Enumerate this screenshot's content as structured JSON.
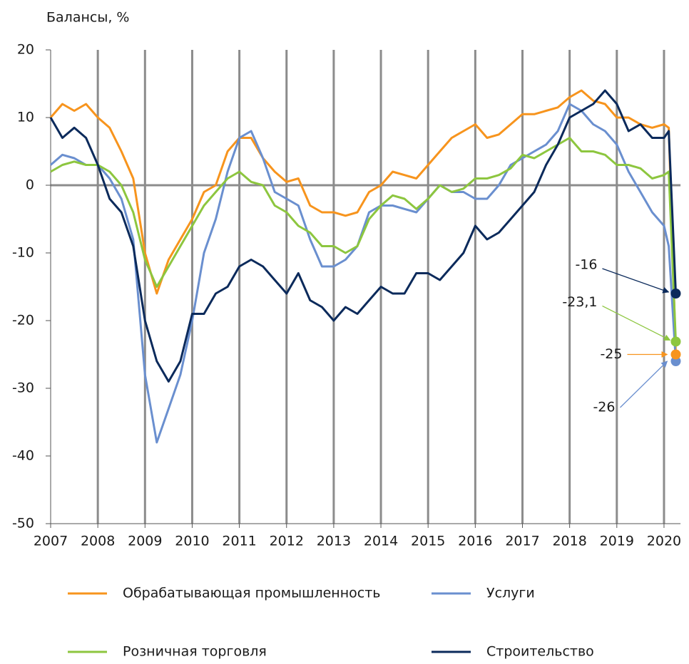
{
  "chart_data": {
    "type": "line",
    "ylabel": "Балансы, %",
    "x": [
      2007,
      2007.25,
      2007.5,
      2007.75,
      2008,
      2008.25,
      2008.5,
      2008.75,
      2009,
      2009.25,
      2009.5,
      2009.75,
      2010,
      2010.25,
      2010.5,
      2010.75,
      2011,
      2011.25,
      2011.5,
      2011.75,
      2012,
      2012.25,
      2012.5,
      2012.75,
      2013,
      2013.25,
      2013.5,
      2013.75,
      2014,
      2014.25,
      2014.5,
      2014.75,
      2015,
      2015.25,
      2015.5,
      2015.75,
      2016,
      2016.25,
      2016.5,
      2016.75,
      2017,
      2017.25,
      2017.5,
      2017.75,
      2018,
      2018.25,
      2018.5,
      2018.75,
      2019,
      2019.25,
      2019.5,
      2019.75,
      2020,
      2020.1,
      2020.25
    ],
    "series": [
      {
        "name": "Обрабатывающая промышленность",
        "color": "#f7941d",
        "end_label": "-25",
        "values": [
          10,
          12,
          11,
          12,
          10,
          8.5,
          5,
          1,
          -10,
          -16,
          -11,
          -8,
          -5,
          -1,
          0,
          5,
          7,
          7,
          4,
          2,
          0.5,
          1,
          -3,
          -4,
          -4,
          -4.5,
          -4,
          -1,
          0,
          2,
          1.5,
          1,
          3,
          5,
          7,
          8,
          9,
          7,
          7.5,
          9,
          10.5,
          10.5,
          11,
          11.5,
          13,
          14,
          12.5,
          12,
          10,
          10,
          9,
          8.5,
          9,
          8.5,
          -25
        ]
      },
      {
        "name": "Услуги",
        "color": "#6a8fcf",
        "end_label": "-26",
        "values": [
          3,
          4.5,
          4,
          3,
          3,
          1,
          -2,
          -8,
          -28,
          -38,
          -33,
          -28,
          -20,
          -10,
          -5,
          2,
          7,
          8,
          4,
          -1,
          -2,
          -3,
          -8,
          -12,
          -12,
          -11,
          -9,
          -4,
          -3,
          -3,
          -3.5,
          -4,
          -2,
          0,
          -1,
          -1,
          -2,
          -2,
          0,
          3,
          4,
          5,
          6,
          8,
          12,
          11,
          9,
          8,
          6,
          2,
          -1,
          -4,
          -6,
          -9,
          -26
        ]
      },
      {
        "name": "Розничная торговля",
        "color": "#8dc63f",
        "end_label": "-23,1",
        "values": [
          2,
          3,
          3.5,
          3,
          3,
          2,
          0,
          -4,
          -11,
          -15,
          -12,
          -9,
          -6,
          -3,
          -1,
          1,
          2,
          0.5,
          0,
          -3,
          -4,
          -6,
          -7,
          -9,
          -9,
          -10,
          -9,
          -5,
          -3,
          -1.5,
          -2,
          -3.5,
          -2,
          0,
          -1,
          -0.5,
          1,
          1,
          1.5,
          2.5,
          4.5,
          4,
          5,
          6,
          7,
          5,
          5,
          4.5,
          3,
          3,
          2.5,
          1,
          1.5,
          2,
          -23.1
        ]
      },
      {
        "name": "Строительство",
        "color": "#0b2a5b",
        "end_label": "-16",
        "values": [
          10,
          7,
          8.5,
          7,
          3,
          -2,
          -4,
          -9,
          -20,
          -26,
          -29,
          -26,
          -19,
          -19,
          -16,
          -15,
          -12,
          -11,
          -12,
          -14,
          -16,
          -13,
          -17,
          -18,
          -20,
          -18,
          -19,
          -17,
          -15,
          -16,
          -16,
          -13,
          -13,
          -14,
          -12,
          -10,
          -6,
          -8,
          -7,
          -5,
          -3,
          -1,
          3,
          6,
          10,
          11,
          12,
          14,
          12,
          8,
          9,
          7,
          7,
          8,
          -16
        ]
      }
    ],
    "xlim": [
      2007,
      2020.35
    ],
    "xticks": [
      2007,
      2008,
      2009,
      2010,
      2011,
      2012,
      2013,
      2014,
      2015,
      2016,
      2017,
      2018,
      2019,
      2020
    ],
    "ylim": [
      -50,
      20
    ],
    "yticks": [
      -50,
      -40,
      -30,
      -20,
      -10,
      0,
      10,
      20
    ],
    "grid": true
  }
}
